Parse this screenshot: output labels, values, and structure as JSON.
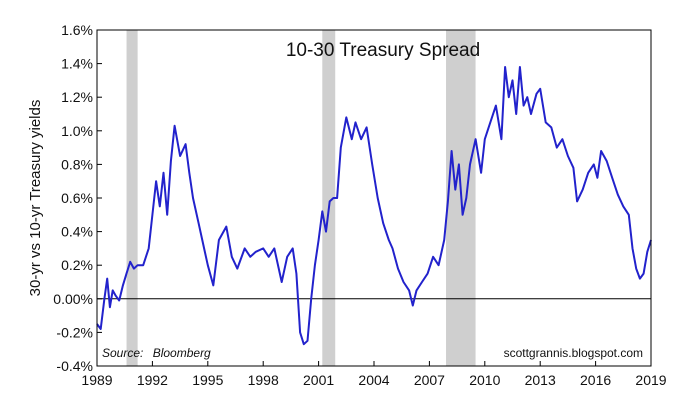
{
  "chart_data": {
    "type": "line",
    "title": "10-30 Treasury Spread",
    "ylabel": "30-yr vs 10-yr Treasury yields",
    "source_label": "Source:",
    "source_name": "Bloomberg",
    "credit": "scottgrannis.blogspot.com",
    "xlim": [
      1989.0,
      2019.0
    ],
    "ylim": [
      -0.4,
      1.6
    ],
    "x_ticks": [
      1989,
      1992,
      1995,
      1998,
      2001,
      2004,
      2007,
      2010,
      2013,
      2016,
      2019
    ],
    "x_tick_labels": [
      "1989",
      "1992",
      "1995",
      "1998",
      "2001",
      "2004",
      "2007",
      "2010",
      "2013",
      "2016",
      "2019"
    ],
    "y_ticks": [
      -0.4,
      -0.2,
      0.0,
      0.2,
      0.4,
      0.6,
      0.8,
      1.0,
      1.2,
      1.4,
      1.6
    ],
    "y_tick_labels": [
      "-0.4%",
      "-0.2%",
      "0.00%",
      "0.2%",
      "0.4%",
      "0.6%",
      "0.8%",
      "1.0%",
      "1.2%",
      "1.4%",
      "1.6%"
    ],
    "grid": false,
    "zero_line": true,
    "recessions": [
      [
        1990.6,
        1991.2
      ],
      [
        2001.2,
        2001.9
      ],
      [
        2007.9,
        2009.5
      ]
    ],
    "colors": {
      "line": "#2222cc",
      "recession": "#cfcfcf",
      "zero_line": "#000000",
      "axis": "#000000"
    },
    "series": [
      {
        "x": [
          1989.0,
          1989.2,
          1989.4,
          1989.55,
          1989.7,
          1989.85,
          1990.0,
          1990.2,
          1990.4,
          1990.6,
          1990.8,
          1991.0,
          1991.2,
          1991.5,
          1991.8,
          1992.0,
          1992.2,
          1992.4,
          1992.6,
          1992.8,
          1993.0,
          1993.2,
          1993.5,
          1993.8,
          1994.0,
          1994.2,
          1994.5,
          1994.8,
          1995.0,
          1995.3,
          1995.6,
          1996.0,
          1996.3,
          1996.6,
          1997.0,
          1997.3,
          1997.6,
          1998.0,
          1998.3,
          1998.6,
          1999.0,
          1999.3,
          1999.6,
          1999.8,
          2000.0,
          2000.2,
          2000.4,
          2000.6,
          2000.8,
          2001.0,
          2001.2,
          2001.4,
          2001.6,
          2001.8,
          2002.0,
          2002.2,
          2002.5,
          2002.8,
          2003.0,
          2003.3,
          2003.6,
          2003.9,
          2004.2,
          2004.5,
          2004.8,
          2005.0,
          2005.3,
          2005.6,
          2005.9,
          2006.1,
          2006.3,
          2006.6,
          2006.9,
          2007.2,
          2007.5,
          2007.8,
          2008.0,
          2008.2,
          2008.4,
          2008.6,
          2008.8,
          2009.0,
          2009.2,
          2009.5,
          2009.8,
          2010.0,
          2010.3,
          2010.6,
          2010.9,
          2011.1,
          2011.3,
          2011.5,
          2011.7,
          2011.9,
          2012.1,
          2012.3,
          2012.5,
          2012.8,
          2013.0,
          2013.3,
          2013.6,
          2013.9,
          2014.2,
          2014.5,
          2014.8,
          2015.0,
          2015.3,
          2015.6,
          2015.9,
          2016.1,
          2016.3,
          2016.6,
          2016.9,
          2017.2,
          2017.5,
          2017.8,
          2018.0,
          2018.2,
          2018.4,
          2018.6,
          2018.8,
          2019.0
        ],
        "y": [
          -0.15,
          -0.18,
          0.0,
          0.12,
          -0.05,
          0.05,
          0.02,
          -0.01,
          0.08,
          0.15,
          0.22,
          0.18,
          0.2,
          0.2,
          0.3,
          0.5,
          0.7,
          0.55,
          0.75,
          0.5,
          0.82,
          1.03,
          0.85,
          0.92,
          0.75,
          0.6,
          0.45,
          0.3,
          0.2,
          0.08,
          0.35,
          0.43,
          0.25,
          0.18,
          0.3,
          0.25,
          0.28,
          0.3,
          0.25,
          0.3,
          0.1,
          0.25,
          0.3,
          0.15,
          -0.2,
          -0.27,
          -0.25,
          0.0,
          0.2,
          0.35,
          0.52,
          0.4,
          0.58,
          0.6,
          0.6,
          0.9,
          1.08,
          0.95,
          1.05,
          0.95,
          1.02,
          0.8,
          0.6,
          0.45,
          0.35,
          0.3,
          0.18,
          0.1,
          0.05,
          -0.04,
          0.05,
          0.1,
          0.15,
          0.25,
          0.2,
          0.35,
          0.58,
          0.88,
          0.65,
          0.8,
          0.5,
          0.6,
          0.8,
          0.95,
          0.75,
          0.95,
          1.05,
          1.15,
          0.95,
          1.38,
          1.2,
          1.3,
          1.1,
          1.38,
          1.15,
          1.2,
          1.1,
          1.22,
          1.25,
          1.05,
          1.02,
          0.9,
          0.95,
          0.85,
          0.78,
          0.58,
          0.65,
          0.75,
          0.8,
          0.72,
          0.88,
          0.82,
          0.72,
          0.62,
          0.55,
          0.5,
          0.3,
          0.18,
          0.12,
          0.15,
          0.28,
          0.35
        ]
      }
    ]
  }
}
